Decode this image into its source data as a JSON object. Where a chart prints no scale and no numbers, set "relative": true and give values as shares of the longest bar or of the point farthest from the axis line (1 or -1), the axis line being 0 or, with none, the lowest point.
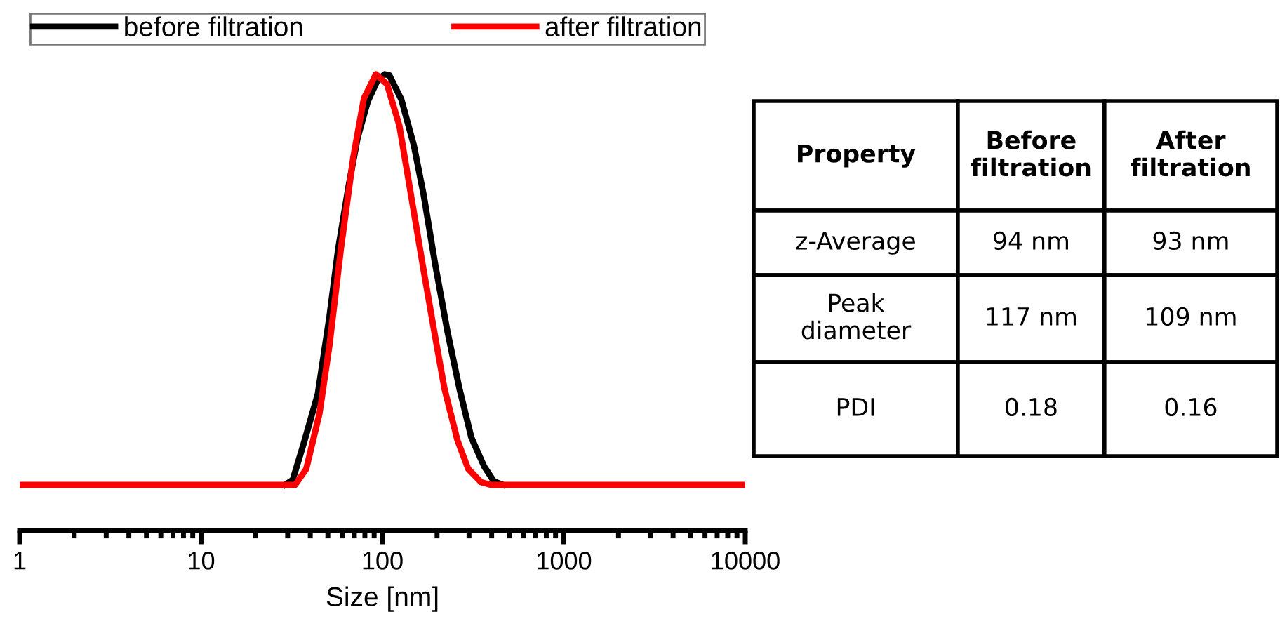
{
  "chart_data": [
    {
      "type": "line",
      "xlabel": "Size [nm]",
      "log": "x",
      "relative": true,
      "xlim": [
        1,
        10000
      ],
      "xticks": [
        1,
        10,
        100,
        1000,
        10000
      ],
      "tick_labels": "x",
      "legend": "top",
      "grid": false,
      "marker": "none",
      "line_style": "solid",
      "series": [
        {
          "name": "before filtration",
          "color": "#000000",
          "x": [
            29,
            32,
            37,
            44,
            51,
            57,
            65,
            73,
            83,
            94,
            103,
            109,
            127,
            149,
            169,
            195,
            228,
            266,
            309,
            363,
            411,
            463
          ],
          "values": [
            0.1,
            0.111,
            0.194,
            0.299,
            0.468,
            0.617,
            0.754,
            0.861,
            0.94,
            0.987,
            1,
            0.998,
            0.945,
            0.844,
            0.734,
            0.585,
            0.437,
            0.31,
            0.204,
            0.141,
            0.108,
            0.1
          ]
        },
        {
          "name": "after filtration",
          "color": "#ff0000",
          "x": [
            1,
            33,
            38,
            45,
            51,
            59,
            69,
            79,
            92,
            106,
            124,
            144,
            168,
            195,
            220,
            259,
            297,
            350,
            397,
            10000
          ],
          "values": [
            0.1,
            0.1,
            0.135,
            0.257,
            0.405,
            0.617,
            0.817,
            0.947,
            1,
            0.978,
            0.887,
            0.733,
            0.574,
            0.426,
            0.31,
            0.198,
            0.135,
            0.106,
            0.1,
            0.1
          ]
        }
      ]
    },
    {
      "type": "other",
      "annotations": [
        "Property",
        "Before filtration",
        "After filtration",
        "z-Average",
        "94 nm",
        "93 nm",
        "Peak diameter",
        "117 nm",
        "109 nm",
        "PDI",
        "0.18",
        "0.16"
      ]
    }
  ]
}
